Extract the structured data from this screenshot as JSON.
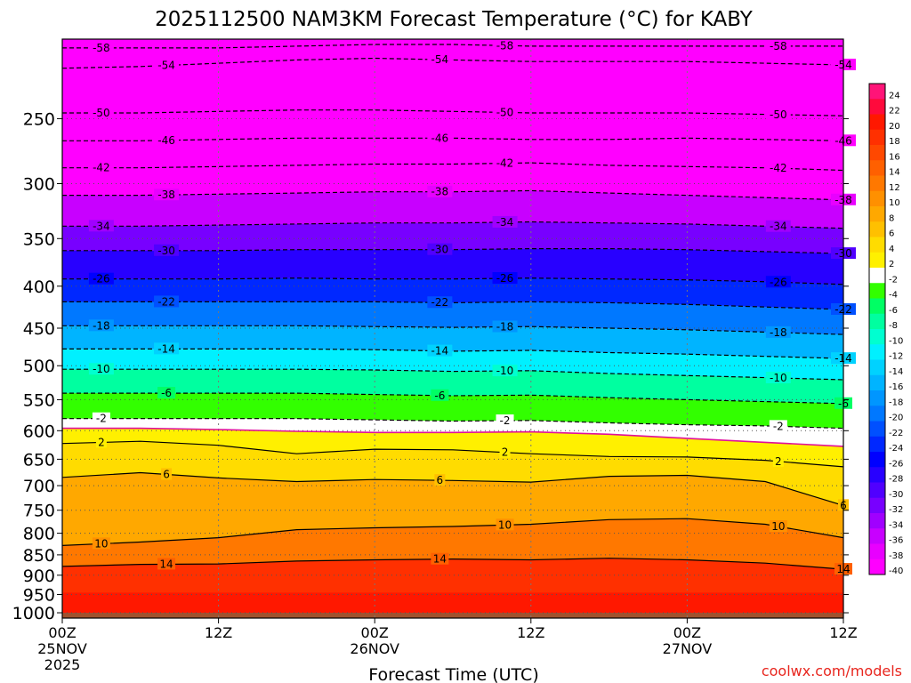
{
  "chart_data": {
    "type": "heatmap",
    "title": "2025112500 NAM3KM Forecast Temperature (°C) for KABY",
    "xlabel": "Forecast Time (UTC)",
    "ylabel": "",
    "credit": "coolwx.com/models",
    "x_ticks": [
      {
        "hour": 0,
        "lines": [
          "00Z",
          "25NOV",
          "2025"
        ]
      },
      {
        "hour": 12,
        "lines": [
          "12Z"
        ]
      },
      {
        "hour": 24,
        "lines": [
          "00Z",
          "26NOV"
        ]
      },
      {
        "hour": 36,
        "lines": [
          "12Z"
        ]
      },
      {
        "hour": 48,
        "lines": [
          "00Z",
          "27NOV"
        ]
      },
      {
        "hour": 60,
        "lines": [
          "12Z"
        ]
      }
    ],
    "xlim_hours": [
      0,
      60
    ],
    "y_ticks": [
      250,
      300,
      350,
      400,
      450,
      500,
      550,
      600,
      650,
      700,
      750,
      800,
      850,
      900,
      950,
      1000
    ],
    "ylim_hPa": [
      1015,
      200
    ],
    "y_scale": "log-pressure (inverted)",
    "grid": "dotted at major ticks",
    "colorbar": {
      "values": [
        -40,
        -38,
        -36,
        -34,
        -32,
        -30,
        -28,
        -26,
        -24,
        -22,
        -20,
        -18,
        -16,
        -14,
        -12,
        -10,
        -8,
        -6,
        -4,
        -2,
        2,
        4,
        6,
        8,
        10,
        12,
        14,
        16,
        18,
        20,
        22,
        24
      ],
      "labels": [
        "-40",
        "-38",
        "-36",
        "-34",
        "-32",
        "-30",
        "-28",
        "-26",
        "-24",
        "-22",
        "-20",
        "-18",
        "-16",
        "-14",
        "-12",
        "-10",
        "-8",
        "-6",
        "-4",
        "-2",
        "2",
        "4",
        "6",
        "8",
        "10",
        "12",
        "14",
        "16",
        "18",
        "20",
        "22",
        "24"
      ],
      "colors": [
        "#ff00ff",
        "#e800ff",
        "#c800ff",
        "#a000ff",
        "#7800ff",
        "#5000ff",
        "#2800ff",
        "#0000ff",
        "#0028ff",
        "#0050ff",
        "#0078ff",
        "#0096ff",
        "#00b4ff",
        "#00d2ff",
        "#00f0ff",
        "#00ffd0",
        "#00ffa0",
        "#00ff64",
        "#32ff00",
        "#ffffff",
        "#fff000",
        "#ffdc00",
        "#ffc000",
        "#ffa800",
        "#ff9000",
        "#ff7800",
        "#ff6000",
        "#ff4800",
        "#ff3000",
        "#ff1800",
        "#ff0a3c",
        "#ff1478"
      ]
    },
    "forecast_hours": [
      0,
      6,
      12,
      18,
      24,
      30,
      36,
      42,
      48,
      54,
      60
    ],
    "isotherms": [
      {
        "value": -58,
        "label": "-58",
        "style": "dashed",
        "pressure_hPa": [
          205,
          205,
          205,
          204,
          203,
          203,
          204,
          204,
          204,
          204,
          204
        ]
      },
      {
        "value": -54,
        "label": "-54",
        "style": "dashed",
        "pressure_hPa": [
          217,
          216,
          214,
          212,
          211,
          212,
          213,
          213,
          213,
          214,
          215
        ]
      },
      {
        "value": -50,
        "label": "-50",
        "style": "dashed",
        "pressure_hPa": [
          246,
          246,
          245,
          244,
          244,
          245,
          246,
          246,
          246,
          247,
          248
        ]
      },
      {
        "value": -46,
        "label": "-46",
        "style": "dashed",
        "pressure_hPa": [
          266,
          266,
          265,
          264,
          264,
          264,
          265,
          265,
          264,
          265,
          266
        ]
      },
      {
        "value": -42,
        "label": "-42",
        "style": "dashed",
        "pressure_hPa": [
          287,
          287,
          286,
          285,
          284,
          284,
          283,
          285,
          286,
          287,
          289
        ]
      },
      {
        "value": -38,
        "label": "-38",
        "style": "dashed",
        "pressure_hPa": [
          310,
          310,
          309,
          308,
          307,
          307,
          306,
          308,
          310,
          312,
          314
        ]
      },
      {
        "value": -34,
        "label": "-34",
        "style": "dashed",
        "pressure_hPa": [
          338,
          338,
          337,
          336,
          335,
          335,
          334,
          335,
          336,
          338,
          340
        ]
      },
      {
        "value": -30,
        "label": "-30",
        "style": "dashed",
        "pressure_hPa": [
          362,
          362,
          362,
          361,
          361,
          361,
          360,
          360,
          361,
          363,
          365
        ]
      },
      {
        "value": -26,
        "label": "-26",
        "style": "dashed",
        "pressure_hPa": [
          392,
          392,
          392,
          391,
          392,
          392,
          391,
          392,
          393,
          395,
          398
        ]
      },
      {
        "value": -22,
        "label": "-22",
        "style": "dashed",
        "pressure_hPa": [
          418,
          418,
          418,
          418,
          418,
          419,
          418,
          419,
          421,
          424,
          427
        ]
      },
      {
        "value": -18,
        "label": "-18",
        "style": "dashed",
        "pressure_hPa": [
          447,
          447,
          447,
          447,
          448,
          449,
          448,
          450,
          452,
          455,
          458
        ]
      },
      {
        "value": -14,
        "label": "-14",
        "style": "dashed",
        "pressure_hPa": [
          477,
          477,
          477,
          477,
          478,
          480,
          479,
          482,
          484,
          487,
          490
        ]
      },
      {
        "value": -10,
        "label": "-10",
        "style": "dashed",
        "pressure_hPa": [
          505,
          505,
          505,
          505,
          506,
          508,
          507,
          511,
          514,
          517,
          520
        ]
      },
      {
        "value": -6,
        "label": "-6",
        "style": "dashed",
        "pressure_hPa": [
          540,
          540,
          540,
          540,
          542,
          544,
          543,
          547,
          550,
          553,
          556
        ]
      },
      {
        "value": -2,
        "label": "-2",
        "style": "dashed",
        "pressure_hPa": [
          580,
          580,
          580,
          580,
          582,
          584,
          583,
          587,
          590,
          592,
          596
        ]
      },
      {
        "value": 0,
        "label": "",
        "style": "magenta",
        "pressure_hPa": [
          596,
          596,
          598,
          601,
          603,
          603,
          602,
          606,
          613,
          620,
          627
        ]
      },
      {
        "value": 2,
        "label": "2",
        "style": "solid",
        "pressure_hPa": [
          622,
          618,
          625,
          640,
          632,
          633,
          640,
          645,
          646,
          652,
          664
        ]
      },
      {
        "value": 6,
        "label": "6",
        "style": "solid",
        "pressure_hPa": [
          684,
          675,
          685,
          692,
          688,
          690,
          693,
          682,
          680,
          692,
          740
        ]
      },
      {
        "value": 10,
        "label": "10",
        "style": "solid",
        "pressure_hPa": [
          828,
          820,
          810,
          792,
          788,
          785,
          780,
          770,
          768,
          780,
          810
        ]
      },
      {
        "value": 14,
        "label": "14",
        "style": "solid",
        "pressure_hPa": [
          878,
          873,
          872,
          865,
          862,
          860,
          862,
          858,
          862,
          870,
          885
        ]
      }
    ]
  }
}
